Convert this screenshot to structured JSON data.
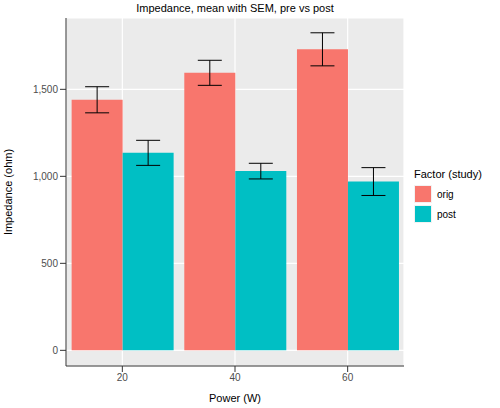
{
  "chart_data": {
    "type": "bar",
    "title": "Impedance, mean with SEM, pre vs post",
    "x_label": "Power (W)",
    "y_label": "Impedance (ohm)",
    "legend_title": "Factor (study)",
    "categories": [
      "20",
      "40",
      "60"
    ],
    "series": [
      {
        "name": "orig",
        "color": "#F8766D",
        "values": [
          1440,
          1595,
          1730
        ],
        "errors": [
          75,
          72,
          95
        ]
      },
      {
        "name": "post",
        "color": "#00BFC4",
        "values": [
          1135,
          1030,
          970
        ],
        "errors": [
          72,
          45,
          80
        ]
      }
    ],
    "ylim": [
      -90,
      1910
    ],
    "yticks": [
      0,
      500,
      {
        "value": 1000,
        "label": "1,000"
      },
      {
        "value": 1500,
        "label": "1,500"
      }
    ],
    "grid": true,
    "legend": "right"
  }
}
